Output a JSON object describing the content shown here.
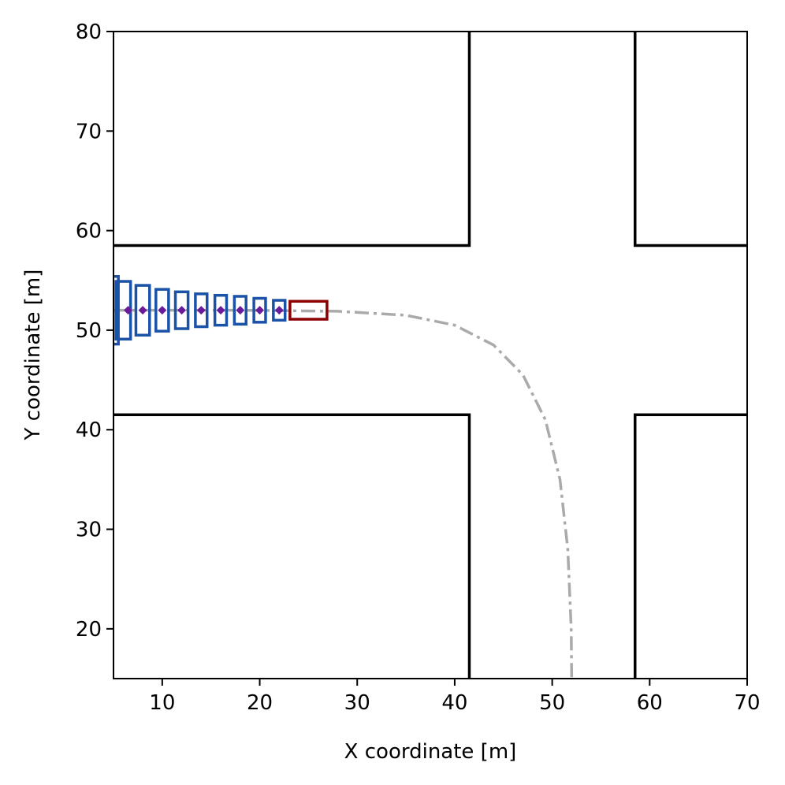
{
  "chart_data": {
    "type": "scatter",
    "title": "",
    "xlabel": "X coordinate [m]",
    "ylabel": "Y coordinate [m]",
    "xlim": [
      5,
      70
    ],
    "ylim": [
      15,
      80
    ],
    "xticks": [
      "10",
      "20",
      "30",
      "40",
      "50",
      "60",
      "70"
    ],
    "yticks": [
      "20",
      "30",
      "40",
      "50",
      "60",
      "70",
      "80"
    ],
    "xtick_values": [
      10,
      20,
      30,
      40,
      50,
      60,
      70
    ],
    "ytick_values": [
      20,
      30,
      40,
      50,
      60,
      70,
      80
    ],
    "grid": false,
    "road_edges": [
      {
        "points": [
          [
            5,
            58.5
          ],
          [
            41.5,
            58.5
          ],
          [
            41.5,
            80
          ]
        ]
      },
      {
        "points": [
          [
            58.5,
            80
          ],
          [
            58.5,
            58.5
          ],
          [
            70,
            58.5
          ]
        ]
      },
      {
        "points": [
          [
            5,
            41.5
          ],
          [
            41.5,
            41.5
          ],
          [
            41.5,
            15
          ]
        ]
      },
      {
        "points": [
          [
            58.5,
            15
          ],
          [
            58.5,
            41.5
          ],
          [
            70,
            41.5
          ]
        ]
      }
    ],
    "reference_path": {
      "color": "#aaaaaa",
      "points": [
        [
          5,
          52
        ],
        [
          18,
          52
        ],
        [
          28,
          51.9
        ],
        [
          35,
          51.5
        ],
        [
          40,
          50.5
        ],
        [
          44,
          48.5
        ],
        [
          47,
          45.5
        ],
        [
          49.3,
          41
        ],
        [
          50.8,
          35
        ],
        [
          51.6,
          28
        ],
        [
          51.95,
          20
        ],
        [
          52,
          15
        ]
      ]
    },
    "predicted_boxes": {
      "color": "#1a52a8",
      "boxes": [
        {
          "cx": 22.0,
          "cy": 52.0,
          "w": 1.2,
          "h": 2.0
        },
        {
          "cx": 20.0,
          "cy": 52.0,
          "w": 1.2,
          "h": 2.4
        },
        {
          "cx": 18.0,
          "cy": 52.0,
          "w": 1.2,
          "h": 2.8
        },
        {
          "cx": 16.0,
          "cy": 52.0,
          "w": 1.2,
          "h": 3.0
        },
        {
          "cx": 14.0,
          "cy": 52.0,
          "w": 1.2,
          "h": 3.3
        },
        {
          "cx": 12.0,
          "cy": 52.0,
          "w": 1.3,
          "h": 3.7
        },
        {
          "cx": 10.0,
          "cy": 52.0,
          "w": 1.3,
          "h": 4.2
        },
        {
          "cx": 8.0,
          "cy": 52.0,
          "w": 1.4,
          "h": 5.0
        },
        {
          "cx": 6.0,
          "cy": 52.0,
          "w": 1.5,
          "h": 5.8
        },
        {
          "cx": 5.0,
          "cy": 52.0,
          "w": 1.0,
          "h": 6.8
        }
      ]
    },
    "predicted_centers": {
      "color": "#6a1b9a",
      "x": [
        22,
        20,
        18,
        16,
        14,
        12,
        10,
        8,
        6.5
      ],
      "y": [
        52,
        52,
        52,
        52,
        52,
        52,
        52,
        52,
        52
      ]
    },
    "ego_vehicle": {
      "color": "#8b0000",
      "cx": 25.0,
      "cy": 52.0,
      "w": 3.8,
      "h": 1.8
    }
  }
}
